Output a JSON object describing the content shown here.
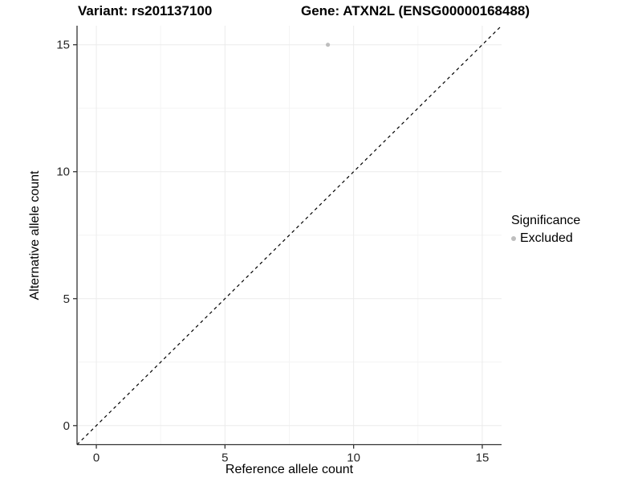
{
  "titles": {
    "variant": "Variant: rs201137100",
    "gene": "Gene: ATXN2L (ENSG00000168488)"
  },
  "axes": {
    "x_title": "Reference allele count",
    "y_title": "Alternative allele count"
  },
  "legend": {
    "title": "Significance",
    "items": [
      {
        "label": "Excluded",
        "color": "#bebebe"
      }
    ]
  },
  "chart_data": {
    "type": "scatter",
    "title": "Variant: rs201137100 / Gene: ATXN2L (ENSG00000168488)",
    "xlabel": "Reference allele count",
    "ylabel": "Alternative allele count",
    "xlim": [
      -0.75,
      15.75
    ],
    "ylim": [
      -0.75,
      15.75
    ],
    "x_ticks": [
      0,
      5,
      10,
      15
    ],
    "y_ticks": [
      0,
      5,
      10,
      15
    ],
    "x_minor_ticks": [
      2.5,
      7.5,
      12.5
    ],
    "y_minor_ticks": [
      2.5,
      7.5,
      12.5
    ],
    "grid": true,
    "legend_position": "right",
    "series": [
      {
        "name": "Excluded",
        "color": "#bebebe",
        "points": [
          {
            "x": 9,
            "y": 15
          }
        ]
      }
    ],
    "reference_line": {
      "style": "dashed",
      "color": "#000000",
      "from": [
        -0.75,
        -0.75
      ],
      "to": [
        15.75,
        15.75
      ]
    },
    "colors": {
      "grid_major": "#ebebeb",
      "grid_minor": "#f4f4f4",
      "axis_line": "#333333",
      "tick_mark": "#333333",
      "tick_label": "#262626",
      "point": "#bebebe"
    }
  }
}
